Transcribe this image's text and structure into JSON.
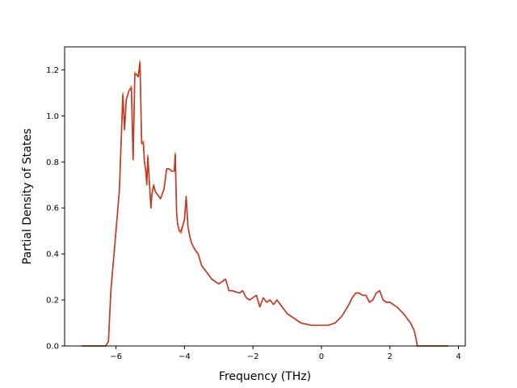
{
  "chart_data": {
    "type": "line",
    "title": "",
    "xlabel": "Frequency (THz)",
    "ylabel": "Partial Density of States",
    "xlim": [
      -7.5,
      4.2
    ],
    "ylim": [
      0.0,
      1.3
    ],
    "xticks": [
      -6,
      -4,
      -2,
      0,
      2,
      4
    ],
    "xtick_labels": [
      "−6",
      "−4",
      "−2",
      "0",
      "2",
      "4"
    ],
    "yticks": [
      0.0,
      0.2,
      0.4,
      0.6,
      0.8,
      1.0,
      1.2
    ],
    "ytick_labels": [
      "0.0",
      "0.2",
      "0.4",
      "0.6",
      "0.8",
      "1.0",
      "1.2"
    ],
    "grid": false,
    "legend": "none",
    "series": [
      {
        "color": "#ff7f0e",
        "x": [
          -7.0,
          -6.3,
          -6.22,
          -6.15,
          -6.0,
          -5.9,
          -5.8,
          -5.75,
          -5.7,
          -5.62,
          -5.55,
          -5.5,
          -5.45,
          -5.4,
          -5.35,
          -5.3,
          -5.25,
          -5.2,
          -5.17,
          -5.13,
          -5.1,
          -5.07,
          -5.02,
          -4.98,
          -4.95,
          -4.9,
          -4.85,
          -4.8,
          -4.75,
          -4.7,
          -4.6,
          -4.52,
          -4.45,
          -4.38,
          -4.3,
          -4.27,
          -4.23,
          -4.2,
          -4.15,
          -4.1,
          -4.0,
          -3.95,
          -3.9,
          -3.85,
          -3.8,
          -3.7,
          -3.6,
          -3.5,
          -3.3,
          -3.2,
          -3.0,
          -2.8,
          -2.7,
          -2.6,
          -2.4,
          -2.3,
          -2.2,
          -2.1,
          -2.0,
          -1.9,
          -1.8,
          -1.7,
          -1.6,
          -1.5,
          -1.4,
          -1.3,
          -1.2,
          -1.1,
          -1.0,
          -0.8,
          -0.6,
          -0.3,
          -0.2,
          0.0,
          0.2,
          0.4,
          0.6,
          0.8,
          0.9,
          1.0,
          1.1,
          1.2,
          1.3,
          1.4,
          1.5,
          1.6,
          1.7,
          1.8,
          1.9,
          2.0,
          2.2,
          2.4,
          2.6,
          2.7,
          2.75,
          2.8,
          3.0,
          3.7
        ],
        "y": [
          0.0,
          0.0,
          0.02,
          0.24,
          0.5,
          0.68,
          1.1,
          0.94,
          1.07,
          1.11,
          1.13,
          0.81,
          1.19,
          1.18,
          1.17,
          1.24,
          0.88,
          0.89,
          0.8,
          0.76,
          0.71,
          0.83,
          0.7,
          0.6,
          0.66,
          0.7,
          0.67,
          0.66,
          0.65,
          0.64,
          0.68,
          0.77,
          0.77,
          0.76,
          0.76,
          0.84,
          0.58,
          0.53,
          0.5,
          0.49,
          0.55,
          0.65,
          0.52,
          0.48,
          0.45,
          0.42,
          0.4,
          0.35,
          0.31,
          0.29,
          0.27,
          0.29,
          0.24,
          0.24,
          0.23,
          0.24,
          0.21,
          0.2,
          0.21,
          0.22,
          0.17,
          0.21,
          0.19,
          0.2,
          0.18,
          0.2,
          0.18,
          0.16,
          0.14,
          0.12,
          0.1,
          0.09,
          0.09,
          0.09,
          0.09,
          0.1,
          0.13,
          0.18,
          0.21,
          0.23,
          0.23,
          0.22,
          0.22,
          0.19,
          0.2,
          0.23,
          0.24,
          0.2,
          0.19,
          0.19,
          0.17,
          0.14,
          0.1,
          0.07,
          0.04,
          0.0,
          0.0,
          0.0
        ]
      },
      {
        "color": "#c0392b",
        "x": [
          -7.0,
          -6.3,
          -6.22,
          -6.15,
          -6.0,
          -5.9,
          -5.8,
          -5.75,
          -5.7,
          -5.62,
          -5.55,
          -5.5,
          -5.45,
          -5.4,
          -5.35,
          -5.3,
          -5.25,
          -5.2,
          -5.17,
          -5.13,
          -5.1,
          -5.07,
          -5.02,
          -4.98,
          -4.95,
          -4.9,
          -4.85,
          -4.8,
          -4.75,
          -4.7,
          -4.6,
          -4.52,
          -4.45,
          -4.38,
          -4.3,
          -4.27,
          -4.23,
          -4.2,
          -4.15,
          -4.1,
          -4.0,
          -3.95,
          -3.9,
          -3.85,
          -3.8,
          -3.7,
          -3.6,
          -3.5,
          -3.3,
          -3.2,
          -3.0,
          -2.8,
          -2.7,
          -2.6,
          -2.4,
          -2.3,
          -2.2,
          -2.1,
          -2.0,
          -1.9,
          -1.8,
          -1.7,
          -1.6,
          -1.5,
          -1.4,
          -1.3,
          -1.2,
          -1.1,
          -1.0,
          -0.8,
          -0.6,
          -0.3,
          -0.2,
          0.0,
          0.2,
          0.4,
          0.6,
          0.8,
          0.9,
          1.0,
          1.1,
          1.2,
          1.3,
          1.4,
          1.5,
          1.6,
          1.7,
          1.8,
          1.9,
          2.0,
          2.2,
          2.4,
          2.6,
          2.7,
          2.75,
          2.8,
          3.0,
          3.7
        ],
        "y": [
          0.0,
          0.0,
          0.02,
          0.24,
          0.5,
          0.68,
          1.09,
          0.94,
          1.07,
          1.11,
          1.12,
          0.81,
          1.18,
          1.18,
          1.17,
          1.23,
          0.88,
          0.88,
          0.8,
          0.76,
          0.7,
          0.82,
          0.7,
          0.6,
          0.66,
          0.7,
          0.67,
          0.66,
          0.65,
          0.64,
          0.68,
          0.77,
          0.77,
          0.76,
          0.76,
          0.83,
          0.58,
          0.53,
          0.5,
          0.5,
          0.55,
          0.65,
          0.52,
          0.48,
          0.45,
          0.42,
          0.4,
          0.35,
          0.31,
          0.29,
          0.27,
          0.29,
          0.24,
          0.24,
          0.23,
          0.24,
          0.21,
          0.2,
          0.21,
          0.22,
          0.17,
          0.21,
          0.19,
          0.2,
          0.18,
          0.2,
          0.18,
          0.16,
          0.14,
          0.12,
          0.1,
          0.09,
          0.09,
          0.09,
          0.09,
          0.1,
          0.13,
          0.18,
          0.21,
          0.23,
          0.23,
          0.22,
          0.22,
          0.19,
          0.2,
          0.23,
          0.24,
          0.2,
          0.19,
          0.19,
          0.17,
          0.14,
          0.1,
          0.07,
          0.04,
          0.0,
          0.0,
          0.0
        ]
      }
    ]
  }
}
